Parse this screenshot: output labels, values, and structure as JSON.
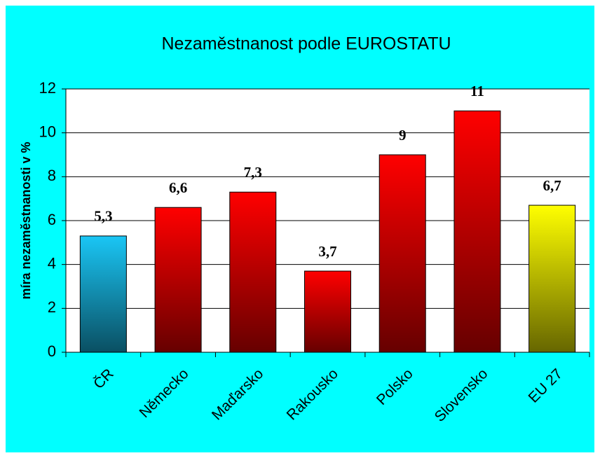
{
  "chart_data": {
    "type": "bar",
    "title": "Nezaměstnanost podle EUROSTATU",
    "y_label": "míra nezaměstnanosti v %",
    "categories": [
      "ČR",
      "Německo",
      "Maďarsko",
      "Rakousko",
      "Polsko",
      "Slovensko",
      "EU 27"
    ],
    "values": [
      5.3,
      6.6,
      7.3,
      3.7,
      9,
      11,
      6.7
    ],
    "value_labels": [
      "5,3",
      "6,6",
      "7,3",
      "3,7",
      "9",
      "11",
      "6,7"
    ],
    "colors": [
      "#1ac6f5",
      "#ff0000",
      "#ff0000",
      "#ff0000",
      "#ff0000",
      "#ff0000",
      "#ffff00"
    ],
    "ylim": [
      0,
      12
    ],
    "yticks": [
      0,
      2,
      4,
      6,
      8,
      10,
      12
    ],
    "grid": true
  }
}
